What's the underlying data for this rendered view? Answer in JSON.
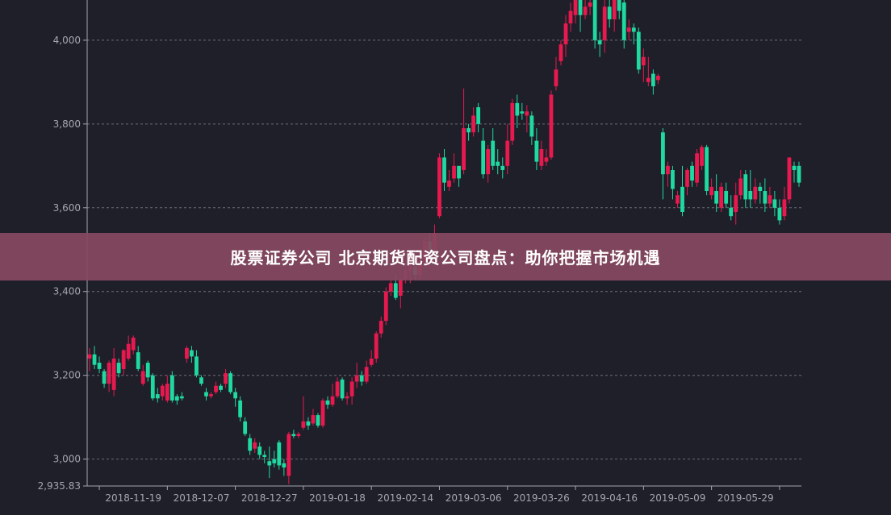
{
  "banner": {
    "title": "股票证券公司 北京期货配资公司盘点：助你把握市场机遇"
  },
  "colors": {
    "background": "#1f1f29",
    "up": "#e8194f",
    "down": "#1fd9a0",
    "grid": "#8a8d99",
    "axis": "#a3a6b0",
    "banner": "#874860"
  },
  "chart_data": {
    "type": "candlestick",
    "ohlc_format": [
      "open",
      "close",
      "low",
      "high"
    ],
    "y_ticks": [
      3000,
      3200,
      3400,
      3600,
      3800,
      4000
    ],
    "y_tick_labels": [
      "3,000",
      "3,200",
      "3,400",
      "3,600",
      "3,800",
      "4,000"
    ],
    "y_min_label": "2,935.83",
    "ylim": [
      2935.83,
      4096
    ],
    "grid": true,
    "x_tick_labels": [
      {
        "label": "2018-11-19",
        "index": 9
      },
      {
        "label": "2018-12-07",
        "index": 23
      },
      {
        "label": "2018-12-27",
        "index": 37
      },
      {
        "label": "2019-01-18",
        "index": 51
      },
      {
        "label": "2019-02-14",
        "index": 65
      },
      {
        "label": "2019-03-06",
        "index": 79
      },
      {
        "label": "2019-03-26",
        "index": 93
      },
      {
        "label": "2019-04-16",
        "index": 107
      },
      {
        "label": "2019-05-09",
        "index": 121
      },
      {
        "label": "2019-05-29",
        "index": 135
      }
    ],
    "candles": [
      [
        3240,
        3250,
        3210,
        3265
      ],
      [
        3250,
        3225,
        3215,
        3270
      ],
      [
        3230,
        3215,
        3205,
        3245
      ],
      [
        3210,
        3180,
        3170,
        3215
      ],
      [
        3180,
        3230,
        3160,
        3235
      ],
      [
        3165,
        3240,
        3150,
        3265
      ],
      [
        3230,
        3205,
        3195,
        3240
      ],
      [
        3215,
        3260,
        3200,
        3262
      ],
      [
        3240,
        3275,
        3235,
        3295
      ],
      [
        3260,
        3290,
        3250,
        3295
      ],
      [
        3255,
        3215,
        3210,
        3270
      ],
      [
        3180,
        3210,
        3175,
        3225
      ],
      [
        3230,
        3195,
        3185,
        3235
      ],
      [
        3200,
        3145,
        3140,
        3205
      ],
      [
        3155,
        3145,
        3135,
        3170
      ],
      [
        3150,
        3175,
        3140,
        3180
      ],
      [
        3140,
        3180,
        3135,
        3200
      ],
      [
        3200,
        3140,
        3135,
        3210
      ],
      [
        3150,
        3140,
        3130,
        3155
      ],
      [
        3150,
        3145,
        3140,
        3160
      ],
      [
        3240,
        3265,
        3230,
        3270
      ],
      [
        3260,
        3245,
        3230,
        3270
      ],
      [
        3245,
        3200,
        3195,
        3260
      ],
      [
        3195,
        3180,
        3175,
        3200
      ],
      [
        3160,
        3150,
        3140,
        3170
      ],
      [
        3150,
        3155,
        3145,
        3160
      ],
      [
        3160,
        3175,
        3155,
        3185
      ],
      [
        3175,
        3165,
        3160,
        3180
      ],
      [
        3180,
        3205,
        3170,
        3215
      ],
      [
        3205,
        3160,
        3155,
        3210
      ],
      [
        3160,
        3145,
        3125,
        3170
      ],
      [
        3140,
        3100,
        3090,
        3150
      ],
      [
        3090,
        3060,
        3055,
        3100
      ],
      [
        3050,
        3020,
        3010,
        3060
      ],
      [
        3025,
        3040,
        3015,
        3050
      ],
      [
        3030,
        3010,
        3000,
        3040
      ],
      [
        3010,
        3005,
        2990,
        3020
      ],
      [
        2995,
        2985,
        2955,
        3030
      ],
      [
        3000,
        2990,
        2980,
        3020
      ],
      [
        3040,
        2985,
        2975,
        3045
      ],
      [
        2990,
        2980,
        2960,
        3000
      ],
      [
        2960,
        3060,
        2940,
        3065
      ],
      [
        3060,
        3055,
        3050,
        3070
      ],
      [
        3055,
        3060,
        3050,
        3065
      ],
      [
        3075,
        3090,
        3070,
        3150
      ],
      [
        3090,
        3080,
        3070,
        3100
      ],
      [
        3085,
        3105,
        3080,
        3120
      ],
      [
        3105,
        3080,
        3075,
        3110
      ],
      [
        3080,
        3140,
        3075,
        3145
      ],
      [
        3140,
        3130,
        3120,
        3150
      ],
      [
        3130,
        3150,
        3125,
        3180
      ],
      [
        3150,
        3185,
        3145,
        3195
      ],
      [
        3190,
        3145,
        3140,
        3195
      ],
      [
        3145,
        3150,
        3130,
        3160
      ],
      [
        3150,
        3185,
        3130,
        3195
      ],
      [
        3185,
        3200,
        3170,
        3230
      ],
      [
        3200,
        3185,
        3175,
        3210
      ],
      [
        3185,
        3220,
        3180,
        3235
      ],
      [
        3225,
        3240,
        3220,
        3260
      ],
      [
        3240,
        3300,
        3230,
        3305
      ],
      [
        3300,
        3330,
        3290,
        3340
      ],
      [
        3330,
        3400,
        3320,
        3410
      ],
      [
        3400,
        3420,
        3390,
        3430
      ],
      [
        3420,
        3385,
        3380,
        3440
      ],
      [
        3390,
        3430,
        3360,
        3450
      ],
      [
        3430,
        3450,
        3420,
        3470
      ],
      [
        3450,
        3460,
        3420,
        3500
      ],
      [
        3460,
        3440,
        3430,
        3480
      ],
      [
        3440,
        3470,
        3430,
        3490
      ],
      [
        3470,
        3520,
        3460,
        3530
      ],
      [
        3520,
        3500,
        3490,
        3540
      ],
      [
        3500,
        3540,
        3480,
        3560
      ],
      [
        3580,
        3720,
        3575,
        3730
      ],
      [
        3720,
        3660,
        3640,
        3740
      ],
      [
        3650,
        3665,
        3640,
        3690
      ],
      [
        3670,
        3700,
        3660,
        3730
      ],
      [
        3700,
        3670,
        3650,
        3700
      ],
      [
        3690,
        3790,
        3680,
        3885
      ],
      [
        3790,
        3780,
        3760,
        3800
      ],
      [
        3780,
        3820,
        3770,
        3840
      ],
      [
        3840,
        3800,
        3780,
        3850
      ],
      [
        3760,
        3680,
        3670,
        3790
      ],
      [
        3680,
        3740,
        3660,
        3750
      ],
      [
        3760,
        3700,
        3690,
        3790
      ],
      [
        3710,
        3700,
        3680,
        3740
      ],
      [
        3700,
        3690,
        3670,
        3720
      ],
      [
        3700,
        3760,
        3680,
        3800
      ],
      [
        3760,
        3850,
        3750,
        3860
      ],
      [
        3850,
        3820,
        3790,
        3870
      ],
      [
        3830,
        3825,
        3810,
        3850
      ],
      [
        3820,
        3830,
        3780,
        3845
      ],
      [
        3820,
        3770,
        3750,
        3830
      ],
      [
        3760,
        3710,
        3690,
        3790
      ],
      [
        3700,
        3740,
        3690,
        3760
      ],
      [
        3710,
        3720,
        3700,
        3740
      ],
      [
        3720,
        3870,
        3715,
        3880
      ],
      [
        3890,
        3930,
        3880,
        3960
      ],
      [
        3950,
        3990,
        3940,
        4000
      ],
      [
        3990,
        4040,
        3960,
        4060
      ],
      [
        4040,
        4070,
        4020,
        4090
      ],
      [
        4060,
        4100,
        4040,
        4100
      ],
      [
        4100,
        4060,
        4020,
        4120
      ],
      [
        4060,
        4080,
        4050,
        4100
      ],
      [
        4080,
        4090,
        4060,
        4100
      ],
      [
        4100,
        4000,
        3980,
        4110
      ],
      [
        4000,
        3990,
        3960,
        4020
      ],
      [
        4000,
        4080,
        3970,
        4100
      ],
      [
        4080,
        4050,
        4030,
        4100
      ],
      [
        4050,
        4100,
        4020,
        4120
      ],
      [
        4100,
        4070,
        4050,
        4110
      ],
      [
        4090,
        4000,
        3980,
        4100
      ],
      [
        4020,
        4030,
        4000,
        4050
      ],
      [
        4030,
        4020,
        3990,
        4040
      ],
      [
        4020,
        3930,
        3920,
        4030
      ],
      [
        3940,
        3960,
        3900,
        3980
      ],
      [
        3900,
        3910,
        3890,
        3960
      ],
      [
        3920,
        3890,
        3870,
        3930
      ],
      [
        3905,
        3915,
        3895,
        3920
      ],
      [
        3780,
        3680,
        3620,
        3790
      ],
      [
        3680,
        3700,
        3650,
        3710
      ],
      [
        3690,
        3645,
        3620,
        3700
      ],
      [
        3610,
        3630,
        3600,
        3640
      ],
      [
        3650,
        3590,
        3580,
        3700
      ],
      [
        3650,
        3690,
        3630,
        3695
      ],
      [
        3700,
        3665,
        3650,
        3710
      ],
      [
        3660,
        3730,
        3650,
        3740
      ],
      [
        3700,
        3745,
        3690,
        3750
      ],
      [
        3745,
        3640,
        3630,
        3750
      ],
      [
        3630,
        3650,
        3620,
        3670
      ],
      [
        3640,
        3610,
        3590,
        3680
      ],
      [
        3600,
        3650,
        3590,
        3660
      ],
      [
        3640,
        3610,
        3600,
        3660
      ],
      [
        3600,
        3580,
        3570,
        3630
      ],
      [
        3590,
        3630,
        3560,
        3660
      ],
      [
        3630,
        3670,
        3620,
        3690
      ],
      [
        3680,
        3620,
        3600,
        3690
      ],
      [
        3640,
        3620,
        3600,
        3690
      ],
      [
        3620,
        3650,
        3610,
        3670
      ],
      [
        3650,
        3640,
        3610,
        3660
      ],
      [
        3640,
        3610,
        3590,
        3670
      ],
      [
        3610,
        3630,
        3600,
        3650
      ],
      [
        3620,
        3600,
        3580,
        3640
      ],
      [
        3600,
        3570,
        3560,
        3620
      ],
      [
        3580,
        3620,
        3570,
        3650
      ],
      [
        3620,
        3720,
        3610,
        3720
      ],
      [
        3700,
        3690,
        3660,
        3710
      ],
      [
        3700,
        3660,
        3650,
        3710
      ]
    ]
  }
}
